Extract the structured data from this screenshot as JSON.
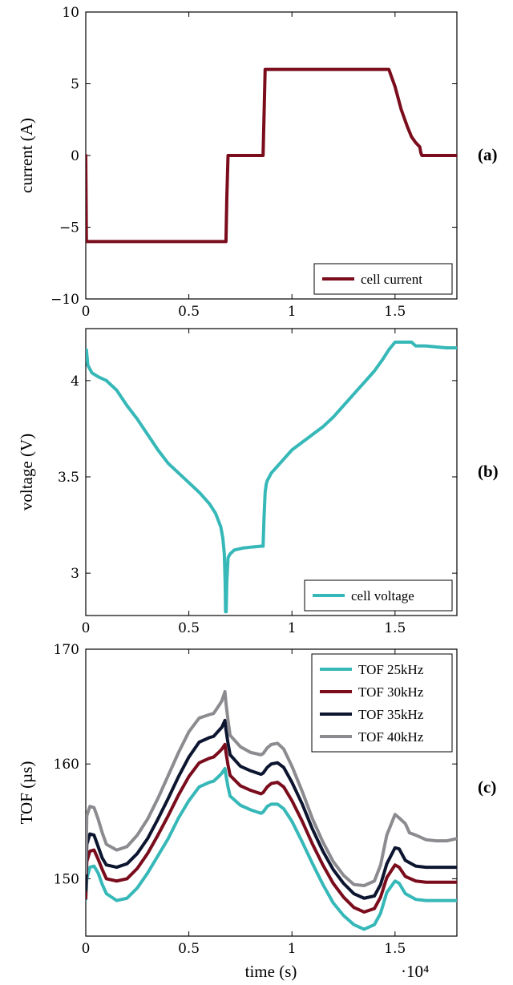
{
  "x_multiplier_label": "·10⁴",
  "chart_data": [
    {
      "type": "line",
      "panel_tag": "(a)",
      "xlabel": "",
      "ylabel": "current (A)",
      "xlim": [
        0,
        1.8
      ],
      "ylim": [
        -10,
        10
      ],
      "xticks": [
        0,
        0.5,
        1,
        1.5
      ],
      "xtick_labels": [
        "0",
        "0.5",
        "1",
        "1.5"
      ],
      "yticks": [
        -10,
        -5,
        0,
        5,
        10
      ],
      "ytick_labels": [
        "−10",
        "−5",
        "0",
        "5",
        "10"
      ],
      "legend_position": "bottom-right",
      "series": [
        {
          "name": "cell current",
          "color": "#7a0c1c",
          "x": [
            0,
            0.003,
            0.006,
            0.68,
            0.684,
            0.69,
            0.86,
            0.865,
            0.87,
            1.47,
            1.5,
            1.53,
            1.56,
            1.58,
            1.6,
            1.62,
            1.625,
            1.63,
            1.8
          ],
          "y": [
            0,
            -6,
            -6,
            -6,
            -3,
            0,
            0,
            3,
            6,
            6,
            4.8,
            3.2,
            2.0,
            1.3,
            0.9,
            0.6,
            0.2,
            0,
            0
          ]
        }
      ]
    },
    {
      "type": "line",
      "panel_tag": "(b)",
      "xlabel": "",
      "ylabel": "voltage (V)",
      "xlim": [
        0,
        1.8
      ],
      "ylim": [
        2.78,
        4.27
      ],
      "xticks": [
        0,
        0.5,
        1,
        1.5
      ],
      "xtick_labels": [
        "0",
        "0.5",
        "1",
        "1.5"
      ],
      "yticks": [
        3,
        3.5,
        4
      ],
      "ytick_labels": [
        "3",
        "3.5",
        "4"
      ],
      "legend_position": "bottom-right",
      "series": [
        {
          "name": "cell voltage",
          "color": "#36b8b8",
          "x": [
            0,
            0.003,
            0.01,
            0.03,
            0.06,
            0.1,
            0.15,
            0.2,
            0.25,
            0.3,
            0.35,
            0.4,
            0.45,
            0.5,
            0.55,
            0.6,
            0.63,
            0.655,
            0.665,
            0.672,
            0.676,
            0.678,
            0.681,
            0.684,
            0.69,
            0.7,
            0.72,
            0.76,
            0.8,
            0.85,
            0.86,
            0.865,
            0.87,
            0.875,
            0.88,
            0.9,
            0.95,
            1.0,
            1.05,
            1.1,
            1.15,
            1.2,
            1.25,
            1.3,
            1.35,
            1.4,
            1.44,
            1.47,
            1.5,
            1.54,
            1.56,
            1.58,
            1.6,
            1.65,
            1.7,
            1.75,
            1.8
          ],
          "y": [
            4.15,
            4.16,
            4.08,
            4.04,
            4.02,
            4.0,
            3.95,
            3.87,
            3.8,
            3.72,
            3.64,
            3.57,
            3.52,
            3.47,
            3.42,
            3.36,
            3.31,
            3.24,
            3.18,
            3.1,
            2.95,
            2.8,
            2.8,
            2.95,
            3.08,
            3.1,
            3.12,
            3.13,
            3.135,
            3.14,
            3.14,
            3.3,
            3.42,
            3.46,
            3.48,
            3.52,
            3.58,
            3.64,
            3.68,
            3.72,
            3.76,
            3.81,
            3.87,
            3.93,
            3.99,
            4.05,
            4.11,
            4.16,
            4.2,
            4.2,
            4.2,
            4.2,
            4.18,
            4.18,
            4.175,
            4.17,
            4.17
          ]
        }
      ]
    },
    {
      "type": "line",
      "panel_tag": "(c)",
      "xlabel": "time (s)",
      "ylabel": "TOF (µs)",
      "xlim": [
        0,
        1.8
      ],
      "ylim": [
        145,
        170
      ],
      "xticks": [
        0,
        0.5,
        1,
        1.5
      ],
      "xtick_labels": [
        "0",
        "0.5",
        "1",
        "1.5"
      ],
      "yticks": [
        150,
        160,
        170
      ],
      "ytick_labels": [
        "150",
        "160",
        "170"
      ],
      "legend_position": "top-right",
      "series": [
        {
          "name": "TOF 25kHz",
          "color": "#36b8b8",
          "x": [
            0,
            0.005,
            0.02,
            0.04,
            0.06,
            0.08,
            0.1,
            0.15,
            0.2,
            0.25,
            0.3,
            0.35,
            0.4,
            0.45,
            0.5,
            0.55,
            0.6,
            0.62,
            0.65,
            0.66,
            0.675,
            0.68,
            0.69,
            0.7,
            0.75,
            0.8,
            0.85,
            0.86,
            0.88,
            0.9,
            0.93,
            0.96,
            1.0,
            1.05,
            1.1,
            1.15,
            1.2,
            1.25,
            1.3,
            1.35,
            1.4,
            1.43,
            1.46,
            1.5,
            1.52,
            1.55,
            1.6,
            1.65,
            1.7,
            1.75,
            1.8
          ],
          "y": [
            148.2,
            150.0,
            151.0,
            151.1,
            150.5,
            149.5,
            148.7,
            148.1,
            148.3,
            149.2,
            150.5,
            152.0,
            153.5,
            155.3,
            156.8,
            158.0,
            158.4,
            158.5,
            159.0,
            159.2,
            159.6,
            159.0,
            158.0,
            157.2,
            156.4,
            156.0,
            155.7,
            155.8,
            156.3,
            156.5,
            156.5,
            156.1,
            155.0,
            153.2,
            151.3,
            149.5,
            147.9,
            146.8,
            146.0,
            145.6,
            146.0,
            147.0,
            148.8,
            149.8,
            149.6,
            148.7,
            148.2,
            148.1,
            148.1,
            148.1,
            148.1
          ]
        },
        {
          "name": "TOF 30kHz",
          "color": "#7a0c1c",
          "x": [
            0,
            0.005,
            0.02,
            0.04,
            0.06,
            0.08,
            0.1,
            0.15,
            0.2,
            0.25,
            0.3,
            0.35,
            0.4,
            0.45,
            0.5,
            0.55,
            0.6,
            0.62,
            0.65,
            0.66,
            0.675,
            0.68,
            0.69,
            0.7,
            0.75,
            0.8,
            0.85,
            0.86,
            0.88,
            0.9,
            0.93,
            0.96,
            1.0,
            1.05,
            1.1,
            1.15,
            1.2,
            1.25,
            1.3,
            1.35,
            1.4,
            1.43,
            1.46,
            1.5,
            1.52,
            1.55,
            1.6,
            1.65,
            1.7,
            1.75,
            1.8
          ],
          "y": [
            148.3,
            151.5,
            152.4,
            152.5,
            151.7,
            150.8,
            150.0,
            149.8,
            150.0,
            150.9,
            152.2,
            153.8,
            155.5,
            157.3,
            158.9,
            160.1,
            160.5,
            160.6,
            161.1,
            161.3,
            161.7,
            161.0,
            159.9,
            159.0,
            158.1,
            157.7,
            157.4,
            157.5,
            158.0,
            158.3,
            158.4,
            158.0,
            156.8,
            155.0,
            153.0,
            151.2,
            149.6,
            148.4,
            147.5,
            147.1,
            147.4,
            148.4,
            150.1,
            151.2,
            151.0,
            150.2,
            149.8,
            149.7,
            149.7,
            149.7,
            149.7
          ]
        },
        {
          "name": "TOF 35kHz",
          "color": "#0d1630",
          "x": [
            0,
            0.005,
            0.02,
            0.04,
            0.06,
            0.08,
            0.1,
            0.15,
            0.2,
            0.25,
            0.3,
            0.35,
            0.4,
            0.45,
            0.5,
            0.55,
            0.6,
            0.62,
            0.65,
            0.66,
            0.675,
            0.68,
            0.69,
            0.7,
            0.75,
            0.8,
            0.85,
            0.86,
            0.88,
            0.9,
            0.93,
            0.96,
            1.0,
            1.05,
            1.1,
            1.15,
            1.2,
            1.25,
            1.3,
            1.35,
            1.4,
            1.43,
            1.46,
            1.5,
            1.52,
            1.55,
            1.6,
            1.65,
            1.7,
            1.75,
            1.8
          ],
          "y": [
            149.0,
            153.0,
            153.9,
            153.8,
            152.8,
            151.8,
            151.2,
            151.0,
            151.3,
            152.2,
            153.5,
            155.2,
            157.0,
            158.9,
            160.6,
            161.9,
            162.3,
            162.4,
            163.0,
            163.2,
            163.8,
            163.0,
            161.8,
            160.8,
            159.8,
            159.4,
            159.1,
            159.2,
            159.7,
            160.0,
            160.1,
            159.7,
            158.4,
            156.5,
            154.3,
            152.4,
            150.8,
            149.6,
            148.7,
            148.3,
            148.5,
            149.5,
            151.3,
            152.7,
            152.6,
            151.6,
            151.1,
            151.0,
            151.0,
            151.0,
            151.0
          ]
        },
        {
          "name": "TOF 40kHz",
          "color": "#8c8c90",
          "x": [
            0,
            0.005,
            0.02,
            0.04,
            0.06,
            0.08,
            0.1,
            0.15,
            0.2,
            0.25,
            0.3,
            0.35,
            0.4,
            0.45,
            0.5,
            0.55,
            0.6,
            0.62,
            0.65,
            0.66,
            0.675,
            0.68,
            0.69,
            0.7,
            0.75,
            0.8,
            0.85,
            0.86,
            0.88,
            0.9,
            0.93,
            0.96,
            1.0,
            1.05,
            1.1,
            1.15,
            1.2,
            1.25,
            1.3,
            1.35,
            1.4,
            1.43,
            1.46,
            1.5,
            1.52,
            1.55,
            1.57,
            1.6,
            1.65,
            1.7,
            1.75,
            1.8
          ],
          "y": [
            150.5,
            155.5,
            156.3,
            156.2,
            155.2,
            154.0,
            153.0,
            152.5,
            152.8,
            153.8,
            155.2,
            157.0,
            159.0,
            161.0,
            162.8,
            164.0,
            164.3,
            164.4,
            165.2,
            165.5,
            166.3,
            165.3,
            163.8,
            162.5,
            161.5,
            161.0,
            160.8,
            160.9,
            161.4,
            161.7,
            161.8,
            161.3,
            159.8,
            157.6,
            155.2,
            153.2,
            151.5,
            150.3,
            149.5,
            149.4,
            149.8,
            151.2,
            153.8,
            155.6,
            155.3,
            154.8,
            154.0,
            153.8,
            153.4,
            153.3,
            153.3,
            153.5
          ]
        }
      ]
    }
  ]
}
